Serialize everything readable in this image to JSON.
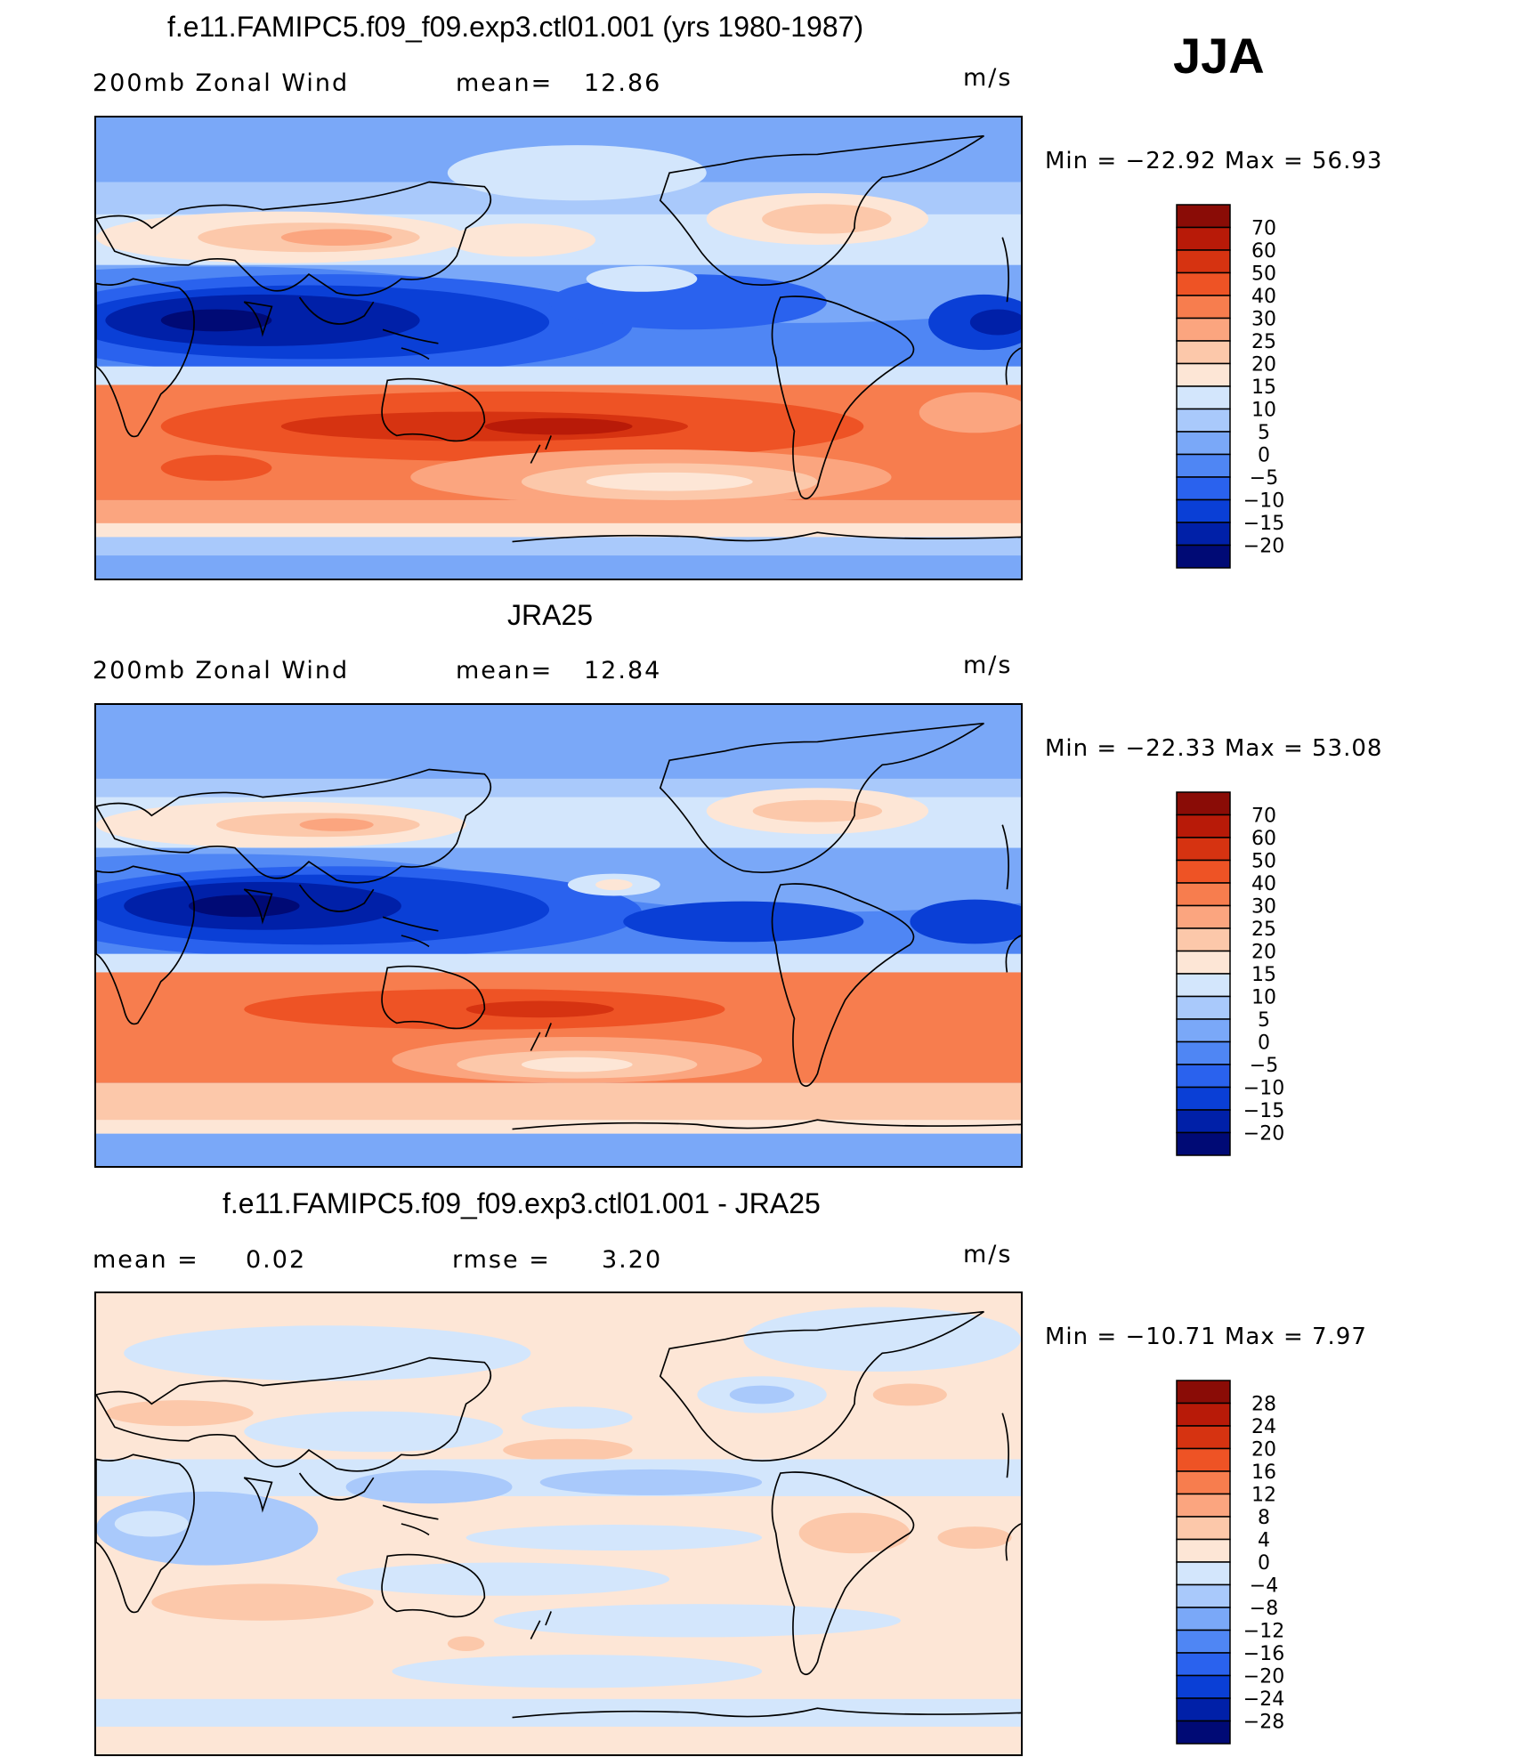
{
  "season": "JJA",
  "panels": [
    {
      "title": "f.e11.FAMIPC5.f09_f09.exp3.ctl01.001 (yrs 1980-1987)",
      "left_label": "200mb  Zonal  Wind",
      "mid_label": "mean=",
      "mid_value": "12.86",
      "units": "m/s",
      "minmax": "Min  =  −22.92  Max  =    56.93",
      "colorbar_labels": [
        "70",
        "60",
        "50",
        "40",
        "30",
        "25",
        "20",
        "15",
        "10",
        "5",
        "0",
        "−5",
        "−10",
        "−15",
        "−20"
      ]
    },
    {
      "title": "JRA25",
      "left_label": "200mb  Zonal  Wind",
      "mid_label": "mean=",
      "mid_value": "12.84",
      "units": "m/s",
      "minmax": "Min  =  −22.33  Max  =   53.08",
      "colorbar_labels": [
        "70",
        "60",
        "50",
        "40",
        "30",
        "25",
        "20",
        "15",
        "10",
        "5",
        "0",
        "−5",
        "−10",
        "−15",
        "−20"
      ]
    },
    {
      "title": "f.e11.FAMIPC5.f09_f09.exp3.ctl01.001 - JRA25",
      "left_label": "mean  =",
      "left_value": "0.02",
      "mid_label": "rmse  =",
      "mid_value": "3.20",
      "units": "m/s",
      "minmax": "Min  =  −10.71  Max  =     7.97",
      "colorbar_labels": [
        "28",
        "24",
        "20",
        "16",
        "12",
        "8",
        "4",
        "0",
        "−4",
        "−8",
        "−12",
        "−16",
        "−20",
        "−24",
        "−28"
      ]
    }
  ],
  "colors": {
    "wind_scale": [
      "#000a75",
      "#0020a8",
      "#0a3fd6",
      "#2a62ee",
      "#4f86f4",
      "#7aa8f8",
      "#a9c9fb",
      "#d3e6fc",
      "#fde6d6",
      "#fcc8aa",
      "#fba57f",
      "#f77d4e",
      "#ee5325",
      "#d63311",
      "#b81a08",
      "#8a0c06"
    ],
    "diff_scale": [
      "#000a75",
      "#0020a8",
      "#0a3fd6",
      "#2a62ee",
      "#4f86f4",
      "#7aa8f8",
      "#a9c9fb",
      "#d3e6fc",
      "#fde6d6",
      "#fcc8aa",
      "#fba57f",
      "#f77d4e",
      "#ee5325",
      "#d63311",
      "#b81a08",
      "#8a0c06"
    ]
  }
}
